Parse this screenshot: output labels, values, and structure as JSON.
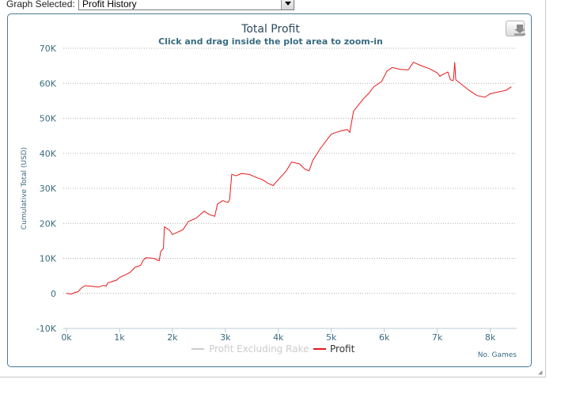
{
  "selector": {
    "label": "Graph Selected:",
    "value": "Profit History"
  },
  "colors": {
    "profit": "#e8191c",
    "excluding_rake": "#cccccc",
    "axis_text": "#3a6c82",
    "title": "#2d4a5c",
    "frame": "#4a7a9a"
  },
  "chart_data": {
    "type": "line",
    "title": "Total Profit",
    "subtitle": "Click and drag inside the plot area to zoom-in",
    "xlabel": "No. Games",
    "ylabel": "Cumulative Total (USD)",
    "xlim": [
      0,
      8500
    ],
    "ylim": [
      -10000,
      70000
    ],
    "x_ticks": [
      0,
      1000,
      2000,
      3000,
      4000,
      5000,
      6000,
      7000,
      8000
    ],
    "x_tick_labels": [
      "0k",
      "1k",
      "2k",
      "3k",
      "4k",
      "5k",
      "6k",
      "7k",
      "8k"
    ],
    "y_ticks": [
      -10000,
      0,
      10000,
      20000,
      30000,
      40000,
      50000,
      60000,
      70000
    ],
    "y_tick_labels": [
      "-10K",
      "0",
      "10K",
      "20K",
      "30K",
      "40K",
      "50K",
      "60K",
      "70K"
    ],
    "grid": true,
    "legend_position": "bottom-center",
    "series": [
      {
        "name": "Profit Excluding Rake",
        "visible": false,
        "values": []
      },
      {
        "name": "Profit",
        "visible": true,
        "points": [
          [
            0,
            0
          ],
          [
            100,
            -200
          ],
          [
            150,
            200
          ],
          [
            220,
            500
          ],
          [
            280,
            1500
          ],
          [
            350,
            2200
          ],
          [
            500,
            2000
          ],
          [
            600,
            1800
          ],
          [
            700,
            2300
          ],
          [
            750,
            2100
          ],
          [
            780,
            3000
          ],
          [
            950,
            3800
          ],
          [
            1000,
            4500
          ],
          [
            1100,
            5200
          ],
          [
            1200,
            6000
          ],
          [
            1300,
            7500
          ],
          [
            1400,
            8000
          ],
          [
            1450,
            9500
          ],
          [
            1500,
            10200
          ],
          [
            1650,
            10000
          ],
          [
            1750,
            9300
          ],
          [
            1780,
            12000
          ],
          [
            1830,
            12800
          ],
          [
            1850,
            19000
          ],
          [
            1950,
            18000
          ],
          [
            2000,
            16800
          ],
          [
            2100,
            17500
          ],
          [
            2200,
            18200
          ],
          [
            2300,
            20500
          ],
          [
            2450,
            21500
          ],
          [
            2600,
            23500
          ],
          [
            2700,
            22500
          ],
          [
            2800,
            22000
          ],
          [
            2850,
            25500
          ],
          [
            2950,
            26500
          ],
          [
            3000,
            26200
          ],
          [
            3050,
            26000
          ],
          [
            3080,
            26800
          ],
          [
            3120,
            34000
          ],
          [
            3200,
            33600
          ],
          [
            3300,
            34200
          ],
          [
            3450,
            34000
          ],
          [
            3600,
            33000
          ],
          [
            3700,
            32500
          ],
          [
            3800,
            31500
          ],
          [
            3900,
            30800
          ],
          [
            4000,
            32500
          ],
          [
            4150,
            35000
          ],
          [
            4250,
            37500
          ],
          [
            4400,
            37000
          ],
          [
            4500,
            35500
          ],
          [
            4580,
            35000
          ],
          [
            4650,
            38000
          ],
          [
            4800,
            41500
          ],
          [
            5000,
            45500
          ],
          [
            5100,
            46000
          ],
          [
            5200,
            46500
          ],
          [
            5300,
            46800
          ],
          [
            5350,
            46000
          ],
          [
            5420,
            52000
          ],
          [
            5550,
            54500
          ],
          [
            5600,
            55500
          ],
          [
            5700,
            57000
          ],
          [
            5800,
            59000
          ],
          [
            5950,
            60500
          ],
          [
            6050,
            63500
          ],
          [
            6150,
            64500
          ],
          [
            6300,
            64000
          ],
          [
            6450,
            63800
          ],
          [
            6550,
            66000
          ],
          [
            6700,
            65000
          ],
          [
            6850,
            64200
          ],
          [
            7000,
            63000
          ],
          [
            7050,
            62000
          ],
          [
            7100,
            62500
          ],
          [
            7200,
            63200
          ],
          [
            7250,
            61000
          ],
          [
            7300,
            60800
          ],
          [
            7310,
            61500
          ],
          [
            7330,
            66000
          ],
          [
            7350,
            61000
          ],
          [
            7450,
            59800
          ],
          [
            7600,
            58000
          ],
          [
            7750,
            56500
          ],
          [
            7900,
            56000
          ],
          [
            8000,
            57000
          ],
          [
            8150,
            57500
          ],
          [
            8300,
            58000
          ],
          [
            8400,
            59000
          ]
        ]
      }
    ]
  }
}
